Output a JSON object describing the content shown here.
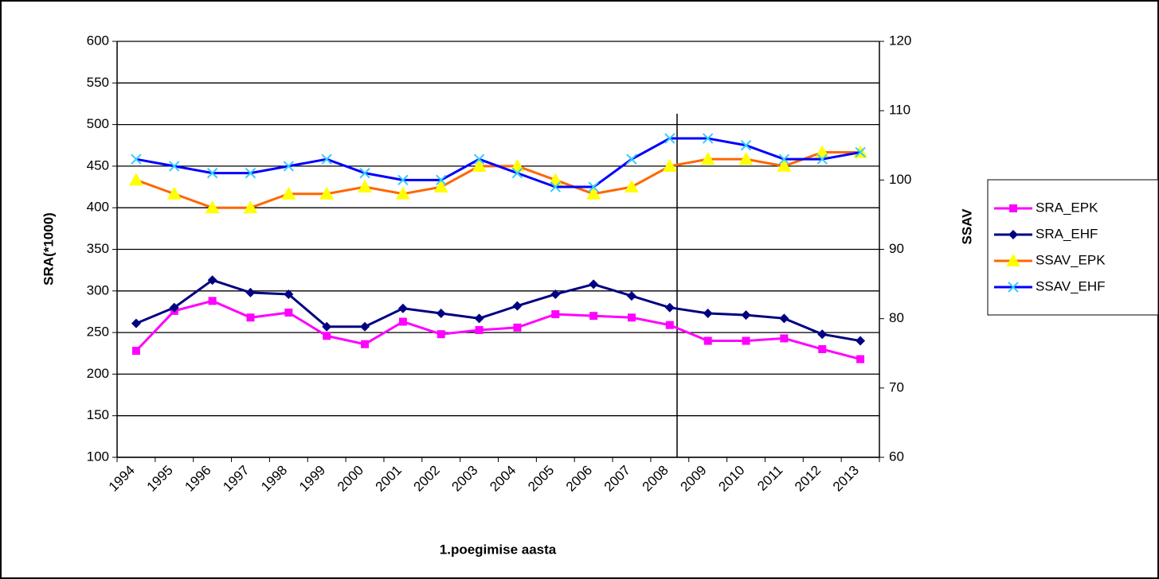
{
  "chart_data": {
    "type": "line",
    "x_label": "1.poegimise aasta",
    "y_label": "SRA(*1000)",
    "y2_label": "SSAV",
    "categories": [
      "1994",
      "1995",
      "1996",
      "1997",
      "1998",
      "1999",
      "2000",
      "2001",
      "2002",
      "2003",
      "2004",
      "2005",
      "2006",
      "2007",
      "2008",
      "2009",
      "2010",
      "2011",
      "2012",
      "2013"
    ],
    "ylim": [
      100,
      600
    ],
    "yticks": [
      100,
      150,
      200,
      250,
      300,
      350,
      400,
      450,
      500,
      550,
      600
    ],
    "y2lim": [
      60,
      120
    ],
    "y2ticks": [
      60,
      70,
      80,
      90,
      100,
      110,
      120
    ],
    "grid": true,
    "legend": "right",
    "series": [
      {
        "name": "SRA_EPK",
        "color": "#ff00ff",
        "marker": "square",
        "values": [
          228,
          276,
          288,
          268,
          274,
          246,
          236,
          263,
          248,
          253,
          256,
          272,
          270,
          268,
          259,
          240,
          240,
          243,
          230,
          218
        ]
      },
      {
        "name": "SRA_EHF",
        "color": "#000080",
        "marker": "diamond",
        "values": [
          261,
          280,
          313,
          298,
          296,
          257,
          257,
          279,
          273,
          267,
          282,
          296,
          308,
          294,
          280,
          273,
          271,
          267,
          248,
          240
        ]
      },
      {
        "name": "SSAV_EPK",
        "color": "#ff6600",
        "marker": "triangle",
        "marker_color": "#ffff00",
        "axis": "y2",
        "values": [
          100,
          98,
          96,
          96,
          98,
          98,
          99,
          98,
          99,
          102,
          102,
          100,
          98,
          99,
          102,
          103,
          103,
          102,
          104,
          104
        ]
      },
      {
        "name": "SSAV_EHF",
        "color": "#0000ff",
        "marker": "x",
        "marker_color": "#33ccff",
        "axis": "y2",
        "values": [
          103,
          102,
          101,
          101,
          102,
          103,
          101,
          100,
          100,
          103,
          101,
          99,
          99,
          103,
          106,
          106,
          105,
          103,
          103,
          104
        ]
      }
    ]
  }
}
